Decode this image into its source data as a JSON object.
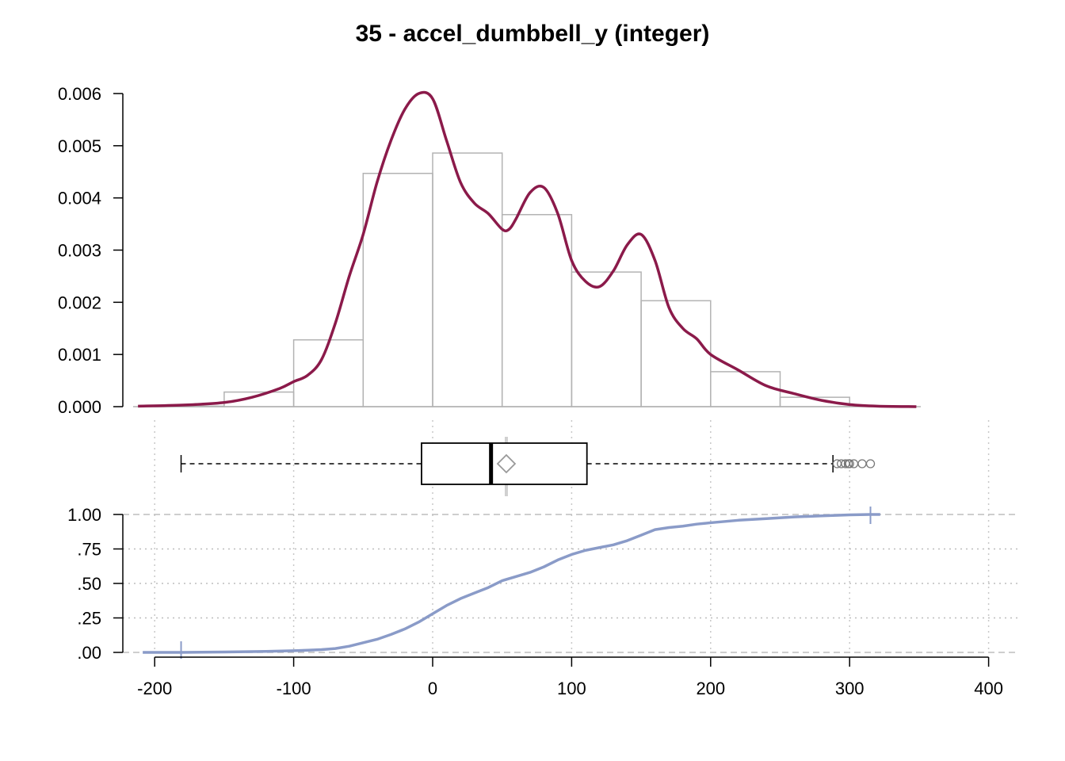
{
  "title": "35 - accel_dumbbell_y (integer)",
  "colors": {
    "density": "#8b1a4a",
    "histogram": "#b3b3b3",
    "ecdf": "#8a9bc8",
    "grid": "#c8c8c8",
    "box": "#000000",
    "mean_marker": "#999999"
  },
  "chart_data": [
    {
      "type": "bar",
      "name": "histogram",
      "bin_edges": [
        -200,
        -150,
        -100,
        -50,
        0,
        50,
        100,
        150,
        200,
        250,
        300
      ],
      "values": [
        1e-05,
        0.00028,
        0.00128,
        0.00447,
        0.00486,
        0.00368,
        0.00258,
        0.00203,
        0.00067,
        0.00018
      ],
      "ylim": [
        0,
        0.006
      ],
      "yticks": [
        "0.000",
        "0.001",
        "0.002",
        "0.003",
        "0.004",
        "0.005",
        "0.006"
      ]
    },
    {
      "type": "line",
      "name": "density",
      "x": [
        -212,
        -180,
        -150,
        -130,
        -110,
        -100,
        -90,
        -80,
        -70,
        -60,
        -50,
        -40,
        -30,
        -20,
        -10,
        0,
        10,
        20,
        30,
        40,
        50,
        55,
        60,
        70,
        80,
        90,
        100,
        110,
        120,
        130,
        140,
        150,
        160,
        170,
        180,
        190,
        200,
        220,
        240,
        260,
        280,
        300,
        320,
        348
      ],
      "y": [
        1e-05,
        3e-05,
        8e-05,
        0.00018,
        0.00035,
        0.00048,
        0.0006,
        0.0009,
        0.0016,
        0.0025,
        0.0033,
        0.0043,
        0.0051,
        0.0057,
        0.006,
        0.0059,
        0.0051,
        0.0043,
        0.0039,
        0.0037,
        0.0034,
        0.0034,
        0.0036,
        0.0041,
        0.0042,
        0.0037,
        0.0028,
        0.0024,
        0.0023,
        0.0026,
        0.0031,
        0.0033,
        0.0028,
        0.0019,
        0.0015,
        0.0013,
        0.001,
        0.0007,
        0.0004,
        0.00025,
        0.00012,
        4e-05,
        1e-05,
        0
      ],
      "xlim": [
        -215,
        350
      ]
    },
    {
      "type": "boxplot",
      "name": "boxplot",
      "whisker_low": -181,
      "q1": -8,
      "median": 42,
      "q3": 111,
      "whisker_high": 288,
      "mean": 53,
      "outliers": [
        291,
        294,
        297,
        299,
        300,
        303,
        309,
        315
      ]
    },
    {
      "type": "line",
      "name": "ecdf",
      "x": [
        -181,
        -150,
        -120,
        -100,
        -90,
        -80,
        -70,
        -60,
        -50,
        -40,
        -30,
        -20,
        -10,
        0,
        10,
        20,
        30,
        40,
        50,
        60,
        70,
        80,
        90,
        100,
        110,
        120,
        130,
        140,
        150,
        160,
        170,
        180,
        190,
        200,
        220,
        240,
        260,
        280,
        300,
        315
      ],
      "y": [
        0.0,
        0.003,
        0.007,
        0.012,
        0.016,
        0.02,
        0.028,
        0.045,
        0.07,
        0.095,
        0.13,
        0.17,
        0.22,
        0.28,
        0.34,
        0.39,
        0.43,
        0.47,
        0.52,
        0.55,
        0.58,
        0.62,
        0.67,
        0.71,
        0.74,
        0.76,
        0.78,
        0.81,
        0.85,
        0.89,
        0.905,
        0.915,
        0.93,
        0.94,
        0.958,
        0.97,
        0.982,
        0.99,
        0.997,
        1.0
      ],
      "ylim": [
        0,
        1
      ],
      "yticks": [
        "1.00",
        ".75",
        ".50",
        ".25",
        ".00"
      ]
    }
  ],
  "xaxis": {
    "xlim": [
      -220,
      420
    ],
    "ticks": [
      -200,
      -100,
      0,
      100,
      200,
      300,
      400
    ],
    "tick_labels": [
      "-200",
      "-100",
      "0",
      "100",
      "200",
      "300",
      "400"
    ]
  }
}
